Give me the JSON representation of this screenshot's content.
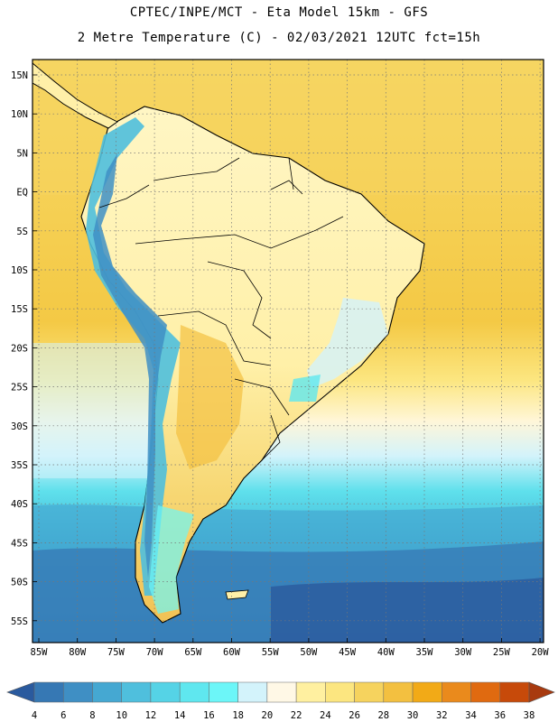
{
  "header": {
    "line1": "CPTEC/INPE/MCT -  Eta Model 15km - GFS",
    "line2": "2 Metre Temperature (C) - 02/03/2021 12UTC fct=15h"
  },
  "map": {
    "lat_labels": [
      "15N",
      "10N",
      "5N",
      "EQ",
      "5S",
      "10S",
      "15S",
      "20S",
      "25S",
      "30S",
      "35S",
      "40S",
      "45S",
      "50S",
      "55S"
    ],
    "lon_labels": [
      "85W",
      "80W",
      "75W",
      "70W",
      "65W",
      "60W",
      "55W",
      "50W",
      "45W",
      "40W",
      "35W",
      "30W",
      "25W",
      "20W"
    ]
  },
  "legend": {
    "values": [
      "4",
      "6",
      "8",
      "10",
      "12",
      "14",
      "16",
      "18",
      "20",
      "22",
      "24",
      "26",
      "28",
      "30",
      "32",
      "34",
      "36",
      "38"
    ],
    "colors": [
      "#2a5a9e",
      "#3678b4",
      "#3f8fc4",
      "#45a8d2",
      "#4fbfdd",
      "#55d3e6",
      "#5fe7ef",
      "#6cf6f8",
      "#d3f3fb",
      "#fff8e6",
      "#fff0a0",
      "#fce680",
      "#f6d35e",
      "#f3c040",
      "#f2aa17",
      "#ea8a1c",
      "#e06a10",
      "#c74a0a",
      "#a83a0f"
    ]
  }
}
